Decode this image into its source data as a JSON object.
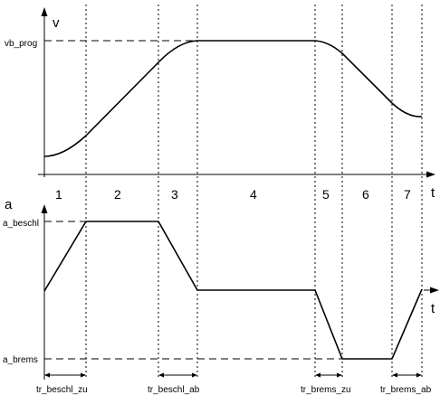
{
  "top_plot": {
    "y_label": "v",
    "level_label": "vb_prog",
    "x_label": "t"
  },
  "bottom_plot": {
    "y_label": "a",
    "upper_label": "a_beschl",
    "lower_label": "a_brems",
    "x_label": "t"
  },
  "phases": [
    "1",
    "2",
    "3",
    "4",
    "5",
    "6",
    "7"
  ],
  "durations": [
    "tr_beschl_zu",
    "tr_beschl_ab",
    "tr_brems_zu",
    "tr_brems_ab"
  ]
}
